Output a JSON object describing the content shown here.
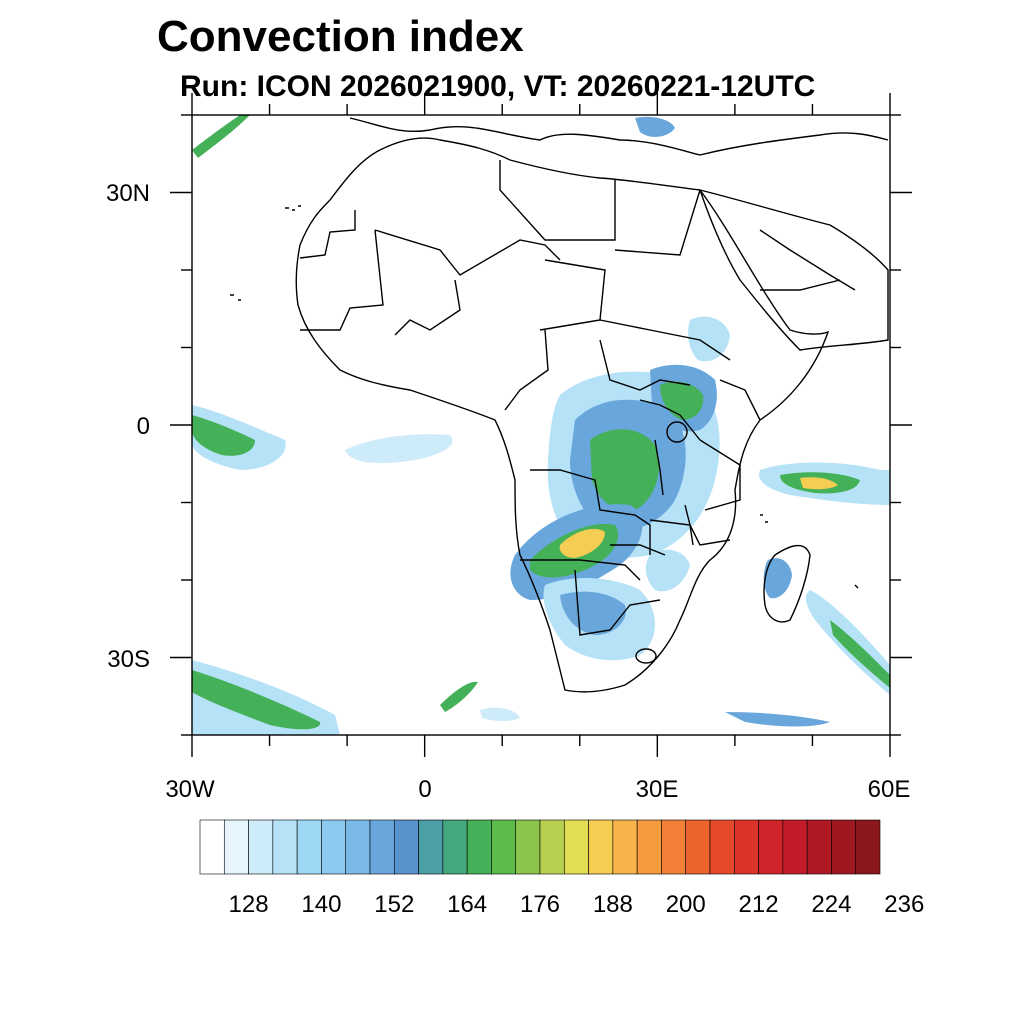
{
  "title": "Convection index",
  "subtitle": "Run: ICON 2026021900,  VT: 20260221-12UTC",
  "axes": {
    "x_ticks": [
      {
        "lon": -30,
        "label": "30W"
      },
      {
        "lon": 0,
        "label": "0"
      },
      {
        "lon": 30,
        "label": "30E"
      },
      {
        "lon": 60,
        "label": "60E"
      }
    ],
    "y_ticks": [
      {
        "lat": 30,
        "label": "30N"
      },
      {
        "lat": 0,
        "label": "0"
      },
      {
        "lat": -30,
        "label": "30S"
      }
    ],
    "lon_range": [
      -30,
      60
    ],
    "lat_range": [
      -40,
      40
    ]
  },
  "colorbar": {
    "colors": [
      "#ffffff",
      "#e6f4fc",
      "#cdebf9",
      "#b5e2f6",
      "#9fd8f4",
      "#8ccbef",
      "#7ab8e6",
      "#69a6dc",
      "#5993cd",
      "#4c9fa6",
      "#45a77e",
      "#44b058",
      "#5cbb4a",
      "#8cc54d",
      "#b8d04f",
      "#e2de53",
      "#f4cd52",
      "#f6b44a",
      "#f59a3f",
      "#f17f35",
      "#ec632e",
      "#e44a2a",
      "#db3229",
      "#cf2429",
      "#c11c27",
      "#b01824",
      "#9f1820",
      "#8c171c"
    ],
    "labels": [
      "128",
      "140",
      "152",
      "164",
      "176",
      "188",
      "200",
      "212",
      "224",
      "236"
    ]
  },
  "field_description_colors": {
    "low": "#b5e2f6",
    "mid": "#69a6dc",
    "high": "#44b058",
    "peak": "#f4cd52",
    "max": "#e44a2a"
  }
}
